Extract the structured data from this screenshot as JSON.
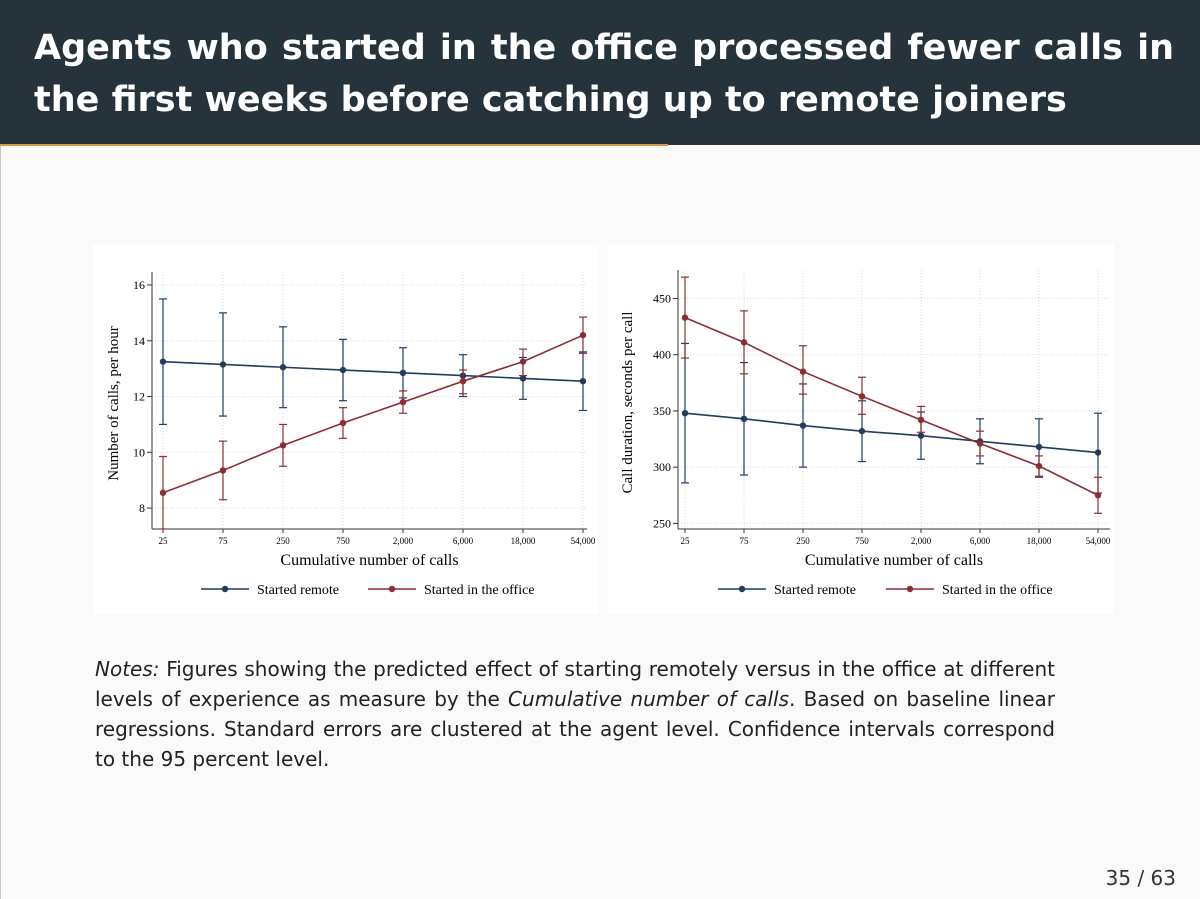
{
  "slide": {
    "title": "Agents who started in the office processed fewer calls in the first weeks before catching up to remote joiners",
    "notes_label": "Notes:",
    "notes_text_1": " Figures showing the predicted effect of starting remotely versus in the office at different levels of experience as measure by the ",
    "notes_emph": "Cumulative number of calls",
    "notes_text_2": ".  Based on baseline linear regressions.  Standard errors are clustered at the agent level.  Confidence intervals correspond to the 95 percent level.",
    "page_number": "35 / 63"
  },
  "colors": {
    "remote": "#1f3d5c",
    "office": "#8b2e32",
    "header_bg": "#26333a",
    "accent": "#d99a45"
  },
  "chart_data": [
    {
      "type": "line",
      "categories": [
        "25",
        "75",
        "250",
        "750",
        "2,000",
        "6,000",
        "18,000",
        "54,000"
      ],
      "xlabel": "Cumulative number of calls",
      "ylabel": "Number of calls, per hour",
      "ylim": [
        7.25,
        16.25
      ],
      "yticks": [
        8,
        10,
        12,
        14,
        16
      ],
      "ytick_labels": [
        "8",
        "10",
        "12",
        "14",
        "16"
      ],
      "grid": true,
      "legend_position": "bottom",
      "series": [
        {
          "name": "Started remote",
          "color": "#1f3d5c",
          "values": [
            13.25,
            13.15,
            13.05,
            12.95,
            12.85,
            12.75,
            12.65,
            12.55
          ],
          "ci_low": [
            11.0,
            11.3,
            11.6,
            11.85,
            11.95,
            12.0,
            11.9,
            11.5
          ],
          "ci_high": [
            15.5,
            15.0,
            14.5,
            14.05,
            13.75,
            13.5,
            13.4,
            13.6
          ]
        },
        {
          "name": "Started in the office",
          "color": "#8b2e32",
          "values": [
            8.55,
            9.35,
            10.25,
            11.05,
            11.8,
            12.55,
            13.25,
            14.2
          ],
          "ci_low": [
            7.25,
            8.3,
            9.5,
            10.5,
            11.4,
            12.1,
            12.75,
            13.55
          ],
          "ci_high": [
            9.85,
            10.4,
            11.0,
            11.6,
            12.2,
            12.95,
            13.7,
            14.85
          ]
        }
      ]
    },
    {
      "type": "line",
      "categories": [
        "25",
        "75",
        "250",
        "750",
        "2,000",
        "6,000",
        "18,000",
        "54,000"
      ],
      "xlabel": "Cumulative number of calls",
      "ylabel": "Call duration, seconds per call",
      "ylim": [
        245,
        470
      ],
      "yticks": [
        250,
        300,
        350,
        400,
        450
      ],
      "ytick_labels": [
        "250",
        "300",
        "350",
        "400",
        "450"
      ],
      "grid": true,
      "legend_position": "bottom",
      "series": [
        {
          "name": "Started remote",
          "color": "#1f3d5c",
          "values": [
            348,
            343,
            337,
            332,
            328,
            323,
            318,
            313
          ],
          "ci_low": [
            286,
            293,
            300,
            305,
            307,
            303,
            291,
            277
          ],
          "ci_high": [
            410,
            393,
            374,
            359,
            349,
            343,
            343,
            348
          ]
        },
        {
          "name": "Started in the office",
          "color": "#8b2e32",
          "values": [
            433,
            411,
            385,
            363,
            342,
            321,
            301,
            275
          ],
          "ci_low": [
            397,
            383,
            365,
            347,
            331,
            310,
            292,
            259
          ],
          "ci_high": [
            469,
            439,
            408,
            380,
            354,
            332,
            310,
            291
          ]
        }
      ]
    }
  ]
}
